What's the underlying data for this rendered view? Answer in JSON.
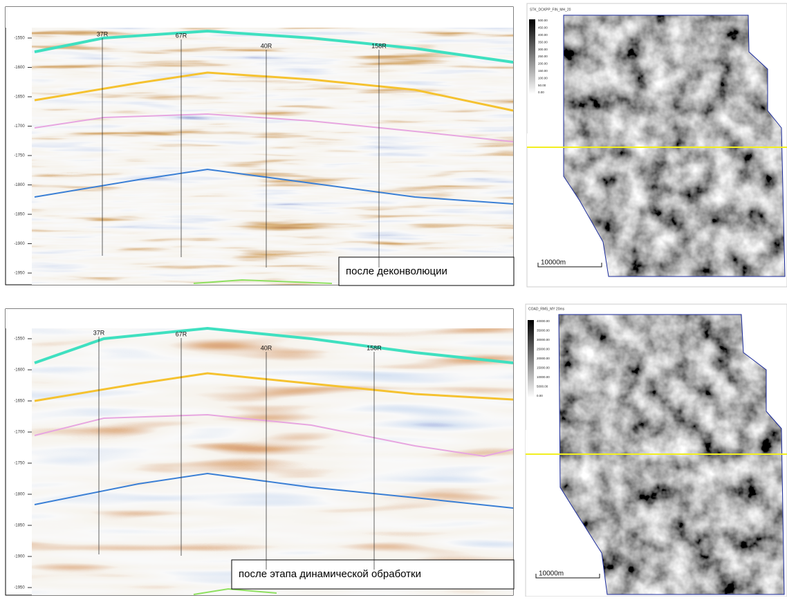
{
  "panels": [
    {
      "section": {
        "caption": "после деконволюции",
        "depth_ticks": [
          -1550,
          -1600,
          -1650,
          -1700,
          -1750,
          -1800,
          -1850,
          -1900,
          -1950
        ],
        "wells": [
          "37R",
          "67R",
          "40R",
          "158R"
        ]
      },
      "map": {
        "title": "STK_DCKPP_FIN_MH_20",
        "colorbar": [
          "500.00",
          "450.00",
          "400.00",
          "350.00",
          "300.00",
          "250.00",
          "200.00",
          "150.00",
          "100.00",
          "50.00",
          "0.00"
        ],
        "scale": "10000m"
      }
    },
    {
      "section": {
        "caption": "после этапа динамической обработки",
        "depth_ticks": [
          -1550,
          -1600,
          -1650,
          -1700,
          -1750,
          -1800,
          -1850,
          -1900,
          -1950
        ],
        "wells": [
          "37R",
          "67R",
          "40R",
          "158R"
        ]
      },
      "map": {
        "title": "COAD_RMS_MY 20ms",
        "colorbar": [
          "40000.00",
          "35000.00",
          "30000.00",
          "25000.00",
          "20000.00",
          "15000.00",
          "10000.00",
          "5000.00",
          "0.00"
        ],
        "scale": "10000m"
      }
    }
  ]
}
